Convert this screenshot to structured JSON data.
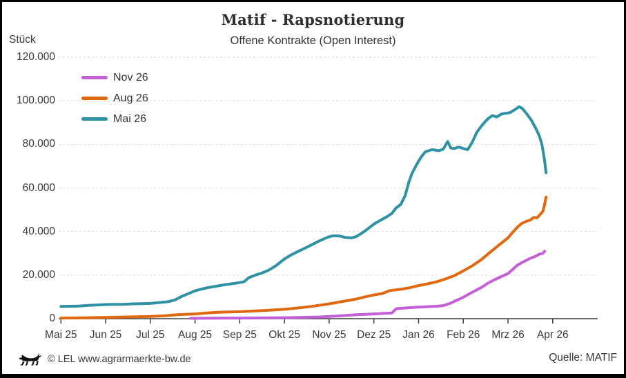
{
  "header": {
    "title": "Matif - Rapsnotierung",
    "subtitle": "Offene Kontrakte (Open Interest)"
  },
  "footer": {
    "copyright": "© LEL www.agrarmaerkte-bw.de",
    "source": "Quelle: MATIF",
    "logo_icon": "bw-lion-icon"
  },
  "chart_data": {
    "type": "line",
    "title": "Matif - Rapsnotierung",
    "subtitle": "Offene Kontrakte (Open Interest)",
    "ylabel": "Stück",
    "xlabel": "",
    "ylim": [
      0,
      120000
    ],
    "grid": "horizontal-dashed",
    "legend_position": "top-left-inside",
    "x_tick_labels": [
      "Mai 25",
      "Jun 25",
      "Jul 25",
      "Aug 25",
      "Sep 25",
      "Okt 25",
      "Nov 25",
      "Dez 25",
      "Jan 26",
      "Feb 26",
      "Mrz 26",
      "Apr 26"
    ],
    "y_tick_values": [
      0,
      20000,
      40000,
      60000,
      80000,
      100000,
      120000
    ],
    "y_tick_labels": [
      "0",
      "20.000",
      "40.000",
      "60.000",
      "80.000",
      "100.000",
      "120.000"
    ],
    "colors": {
      "nov26": "#c45fd8",
      "aug26": "#e0690f",
      "mai26": "#2e91a4",
      "grid": "#dadada",
      "axis": "#3f3f3f"
    },
    "series": [
      {
        "name": "Nov 26",
        "color": "#c45fd8",
        "points": [
          [
            2.9,
            150
          ],
          [
            3.2,
            200
          ],
          [
            3.6,
            250
          ],
          [
            4.0,
            300
          ],
          [
            4.5,
            350
          ],
          [
            5.0,
            450
          ],
          [
            5.4,
            600
          ],
          [
            5.8,
            800
          ],
          [
            6.0,
            1000
          ],
          [
            6.3,
            1400
          ],
          [
            6.6,
            1800
          ],
          [
            6.8,
            2000
          ],
          [
            7.0,
            2200
          ],
          [
            7.2,
            2400
          ],
          [
            7.4,
            2600
          ],
          [
            7.5,
            4600
          ],
          [
            7.7,
            4900
          ],
          [
            8.0,
            5300
          ],
          [
            8.2,
            5500
          ],
          [
            8.4,
            5700
          ],
          [
            8.55,
            6000
          ],
          [
            8.7,
            7000
          ],
          [
            8.85,
            8400
          ],
          [
            9.0,
            9800
          ],
          [
            9.15,
            11600
          ],
          [
            9.3,
            13200
          ],
          [
            9.42,
            14500
          ],
          [
            9.55,
            16300
          ],
          [
            9.7,
            17900
          ],
          [
            9.85,
            19300
          ],
          [
            10.0,
            20700
          ],
          [
            10.1,
            22500
          ],
          [
            10.2,
            24400
          ],
          [
            10.3,
            25600
          ],
          [
            10.4,
            26700
          ],
          [
            10.5,
            27700
          ],
          [
            10.6,
            28500
          ],
          [
            10.7,
            29600
          ],
          [
            10.78,
            30000
          ],
          [
            10.82,
            31000
          ]
        ]
      },
      {
        "name": "Aug 26",
        "color": "#e0690f",
        "points": [
          [
            0,
            300
          ],
          [
            0.5,
            400
          ],
          [
            1.0,
            600
          ],
          [
            1.5,
            800
          ],
          [
            2.0,
            1000
          ],
          [
            2.3,
            1300
          ],
          [
            2.6,
            1800
          ],
          [
            3.0,
            2200
          ],
          [
            3.3,
            2700
          ],
          [
            3.6,
            3000
          ],
          [
            4.0,
            3200
          ],
          [
            4.5,
            3700
          ],
          [
            5.0,
            4300
          ],
          [
            5.3,
            4900
          ],
          [
            5.6,
            5600
          ],
          [
            6.0,
            6800
          ],
          [
            6.3,
            7900
          ],
          [
            6.6,
            9000
          ],
          [
            6.8,
            10000
          ],
          [
            7.0,
            10900
          ],
          [
            7.2,
            11600
          ],
          [
            7.35,
            12900
          ],
          [
            7.6,
            13500
          ],
          [
            7.8,
            14200
          ],
          [
            8.0,
            15200
          ],
          [
            8.2,
            16000
          ],
          [
            8.4,
            16900
          ],
          [
            8.6,
            18200
          ],
          [
            8.8,
            19800
          ],
          [
            9.0,
            21900
          ],
          [
            9.2,
            24300
          ],
          [
            9.4,
            27000
          ],
          [
            9.6,
            30500
          ],
          [
            9.8,
            33800
          ],
          [
            10.0,
            37100
          ],
          [
            10.1,
            39500
          ],
          [
            10.2,
            41800
          ],
          [
            10.3,
            43600
          ],
          [
            10.4,
            44600
          ],
          [
            10.5,
            45300
          ],
          [
            10.58,
            46500
          ],
          [
            10.65,
            46300
          ],
          [
            10.72,
            47800
          ],
          [
            10.78,
            49300
          ],
          [
            10.82,
            52500
          ],
          [
            10.85,
            55800
          ]
        ]
      },
      {
        "name": "Mai 26",
        "color": "#2e91a4",
        "points": [
          [
            0,
            5600
          ],
          [
            0.2,
            5700
          ],
          [
            0.4,
            5800
          ],
          [
            0.6,
            6100
          ],
          [
            0.8,
            6300
          ],
          [
            1.0,
            6500
          ],
          [
            1.2,
            6600
          ],
          [
            1.4,
            6600
          ],
          [
            1.6,
            6800
          ],
          [
            1.8,
            6900
          ],
          [
            2.0,
            7000
          ],
          [
            2.2,
            7400
          ],
          [
            2.4,
            7800
          ],
          [
            2.55,
            8600
          ],
          [
            2.7,
            10200
          ],
          [
            2.85,
            11500
          ],
          [
            3.0,
            12800
          ],
          [
            3.15,
            13600
          ],
          [
            3.3,
            14300
          ],
          [
            3.5,
            15000
          ],
          [
            3.7,
            15700
          ],
          [
            3.85,
            16100
          ],
          [
            4.0,
            16600
          ],
          [
            4.1,
            17000
          ],
          [
            4.2,
            18800
          ],
          [
            4.35,
            20000
          ],
          [
            4.5,
            21000
          ],
          [
            4.65,
            22300
          ],
          [
            4.8,
            24200
          ],
          [
            4.9,
            25800
          ],
          [
            5.0,
            27400
          ],
          [
            5.15,
            29300
          ],
          [
            5.3,
            30800
          ],
          [
            5.45,
            32300
          ],
          [
            5.6,
            33800
          ],
          [
            5.75,
            35400
          ],
          [
            5.9,
            36800
          ],
          [
            6.0,
            37600
          ],
          [
            6.1,
            38100
          ],
          [
            6.25,
            37900
          ],
          [
            6.35,
            37300
          ],
          [
            6.5,
            37100
          ],
          [
            6.6,
            37600
          ],
          [
            6.75,
            39500
          ],
          [
            6.9,
            41800
          ],
          [
            7.0,
            43400
          ],
          [
            7.15,
            45200
          ],
          [
            7.3,
            46900
          ],
          [
            7.4,
            48300
          ],
          [
            7.5,
            50900
          ],
          [
            7.6,
            52400
          ],
          [
            7.7,
            56500
          ],
          [
            7.78,
            62500
          ],
          [
            7.85,
            66500
          ],
          [
            7.95,
            70500
          ],
          [
            8.05,
            74000
          ],
          [
            8.15,
            76600
          ],
          [
            8.3,
            77600
          ],
          [
            8.45,
            77100
          ],
          [
            8.55,
            77800
          ],
          [
            8.65,
            81300
          ],
          [
            8.72,
            78300
          ],
          [
            8.8,
            78100
          ],
          [
            8.9,
            78800
          ],
          [
            9.0,
            78100
          ],
          [
            9.1,
            77600
          ],
          [
            9.2,
            81000
          ],
          [
            9.3,
            85500
          ],
          [
            9.42,
            88800
          ],
          [
            9.55,
            91800
          ],
          [
            9.65,
            93200
          ],
          [
            9.75,
            92600
          ],
          [
            9.85,
            93900
          ],
          [
            9.95,
            94300
          ],
          [
            10.05,
            94600
          ],
          [
            10.15,
            95900
          ],
          [
            10.25,
            97300
          ],
          [
            10.32,
            96500
          ],
          [
            10.42,
            94000
          ],
          [
            10.52,
            91200
          ],
          [
            10.62,
            87400
          ],
          [
            10.7,
            84000
          ],
          [
            10.76,
            80000
          ],
          [
            10.82,
            72500
          ],
          [
            10.85,
            67000
          ]
        ]
      }
    ]
  }
}
